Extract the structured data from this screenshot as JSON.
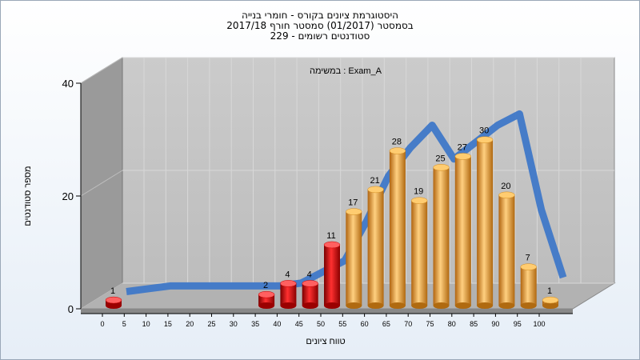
{
  "chart_data": {
    "type": "bar",
    "title_lines": [
      "היסטוגרמת ציונים בקורס - חומרי בנייה",
      "בסמסטר  (01/2017)  סמסטר חורף 2017/18",
      "סטודנטים רשומים - 229"
    ],
    "annotation": "במשימה : Exam_A",
    "xlabel": "טווח ציונים",
    "ylabel": "מספר סטודנטים",
    "ylim": [
      0,
      40
    ],
    "y_ticks": [
      "0",
      "20",
      "40"
    ],
    "x_ticks": [
      "0",
      "5",
      "10",
      "15",
      "20",
      "25",
      "30",
      "35",
      "40",
      "45",
      "50",
      "55",
      "60",
      "65",
      "70",
      "75",
      "80",
      "85",
      "90",
      "95",
      "100"
    ],
    "categories": [
      "0",
      "5",
      "10",
      "15",
      "20",
      "25",
      "30",
      "35",
      "40",
      "45",
      "50",
      "55",
      "60",
      "65",
      "70",
      "75",
      "80",
      "85",
      "90",
      "95",
      "100"
    ],
    "values": [
      1,
      0,
      0,
      0,
      0,
      0,
      0,
      2,
      4,
      4,
      11,
      17,
      21,
      28,
      19,
      25,
      27,
      30,
      20,
      7,
      1
    ],
    "value_labels": [
      "1",
      "",
      "",
      "",
      "",
      "",
      "",
      "2",
      "4",
      "4",
      "11",
      "17",
      "21",
      "28",
      "19",
      "25",
      "27",
      "30",
      "20",
      "7",
      "1"
    ],
    "colors": {
      "fail": "#e01010",
      "pass": "#f0a030",
      "trend": "#3f78c8",
      "plot_back": "#c4c4c4",
      "side_wall": "#9a9a9a",
      "floor": "#b0b0b0"
    },
    "trend_values": [
      0.5,
      1,
      1.5,
      1.5,
      1.5,
      1.5,
      1.5,
      1.5,
      2,
      4,
      6,
      13,
      21,
      26,
      30,
      24,
      27,
      30,
      32,
      15,
      3
    ],
    "grid": true
  }
}
